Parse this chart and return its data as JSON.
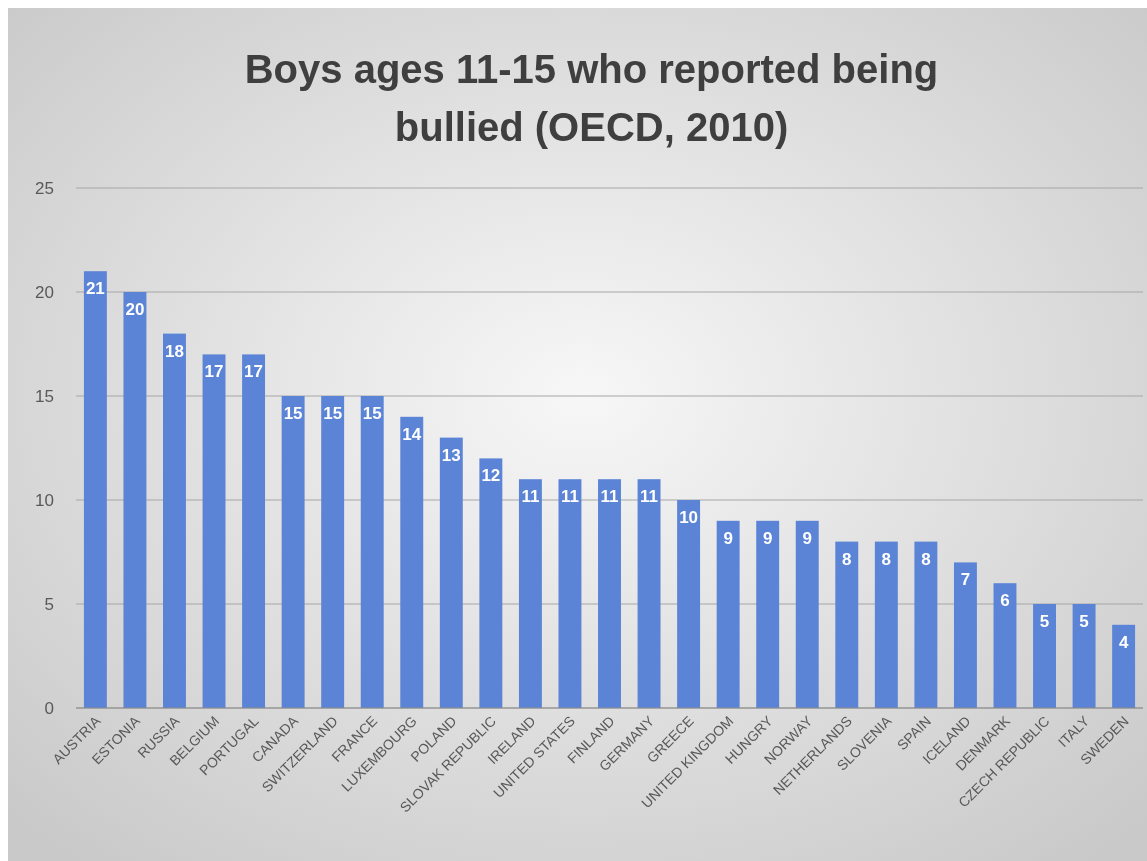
{
  "chart_data": {
    "type": "bar",
    "title": "Boys ages 11-15 who reported being bullied (OECD, 2010)",
    "categories": [
      "AUSTRIA",
      "ESTONIA",
      "RUSSIA",
      "BELGIUM",
      "PORTUGAL",
      "CANADA",
      "SWITZERLAND",
      "FRANCE",
      "LUXEMBOURG",
      "POLAND",
      "SLOVAK REPUBLIC",
      "IRELAND",
      "UNITED STATES",
      "FINLAND",
      "GERMANY",
      "GREECE",
      "UNITED KINGDOM",
      "HUNGRY",
      "NORWAY",
      "NETHERLANDS",
      "SLOVENIA",
      "SPAIN",
      "ICELAND",
      "DENMARK",
      "CZECH REPUBLIC",
      "ITALY",
      "SWEDEN"
    ],
    "values": [
      21,
      20,
      18,
      17,
      17,
      15,
      15,
      15,
      14,
      13,
      12,
      11,
      11,
      11,
      11,
      10,
      9,
      9,
      9,
      8,
      8,
      8,
      7,
      6,
      5,
      5,
      4
    ],
    "color": "#5b84d6",
    "ylim": [
      0,
      25
    ],
    "yticks": [
      0,
      5,
      10,
      15,
      20,
      25
    ],
    "grid": true,
    "data_labels": true
  }
}
